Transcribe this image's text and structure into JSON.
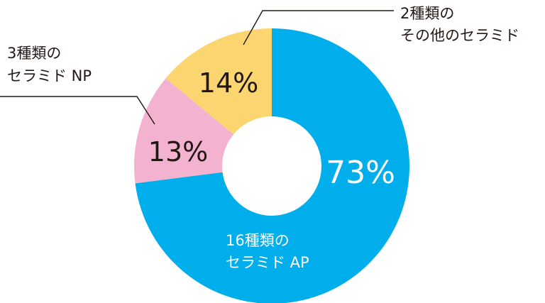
{
  "chart_data": {
    "type": "pie",
    "variant": "donut",
    "title": "",
    "slices": [
      {
        "id": "ap",
        "label_lines": [
          "16種類の",
          "セラミド AP"
        ],
        "value": 73,
        "value_label": "73%",
        "color": "#00aeeb",
        "value_text_color": "#ffffff",
        "label_text_color": "#ffffff"
      },
      {
        "id": "np",
        "label_lines": [
          "3種類の",
          "セラミド NP"
        ],
        "value": 13,
        "value_label": "13%",
        "color": "#f2b2d0",
        "value_text_color": "#231815",
        "label_text_color": "#231815"
      },
      {
        "id": "other",
        "label_lines": [
          "2種類の",
          "その他のセラミド"
        ],
        "value": 14,
        "value_label": "14%",
        "color": "#fbd56f",
        "value_text_color": "#231815",
        "label_text_color": "#231815"
      }
    ],
    "legend": "none",
    "grid": false
  }
}
